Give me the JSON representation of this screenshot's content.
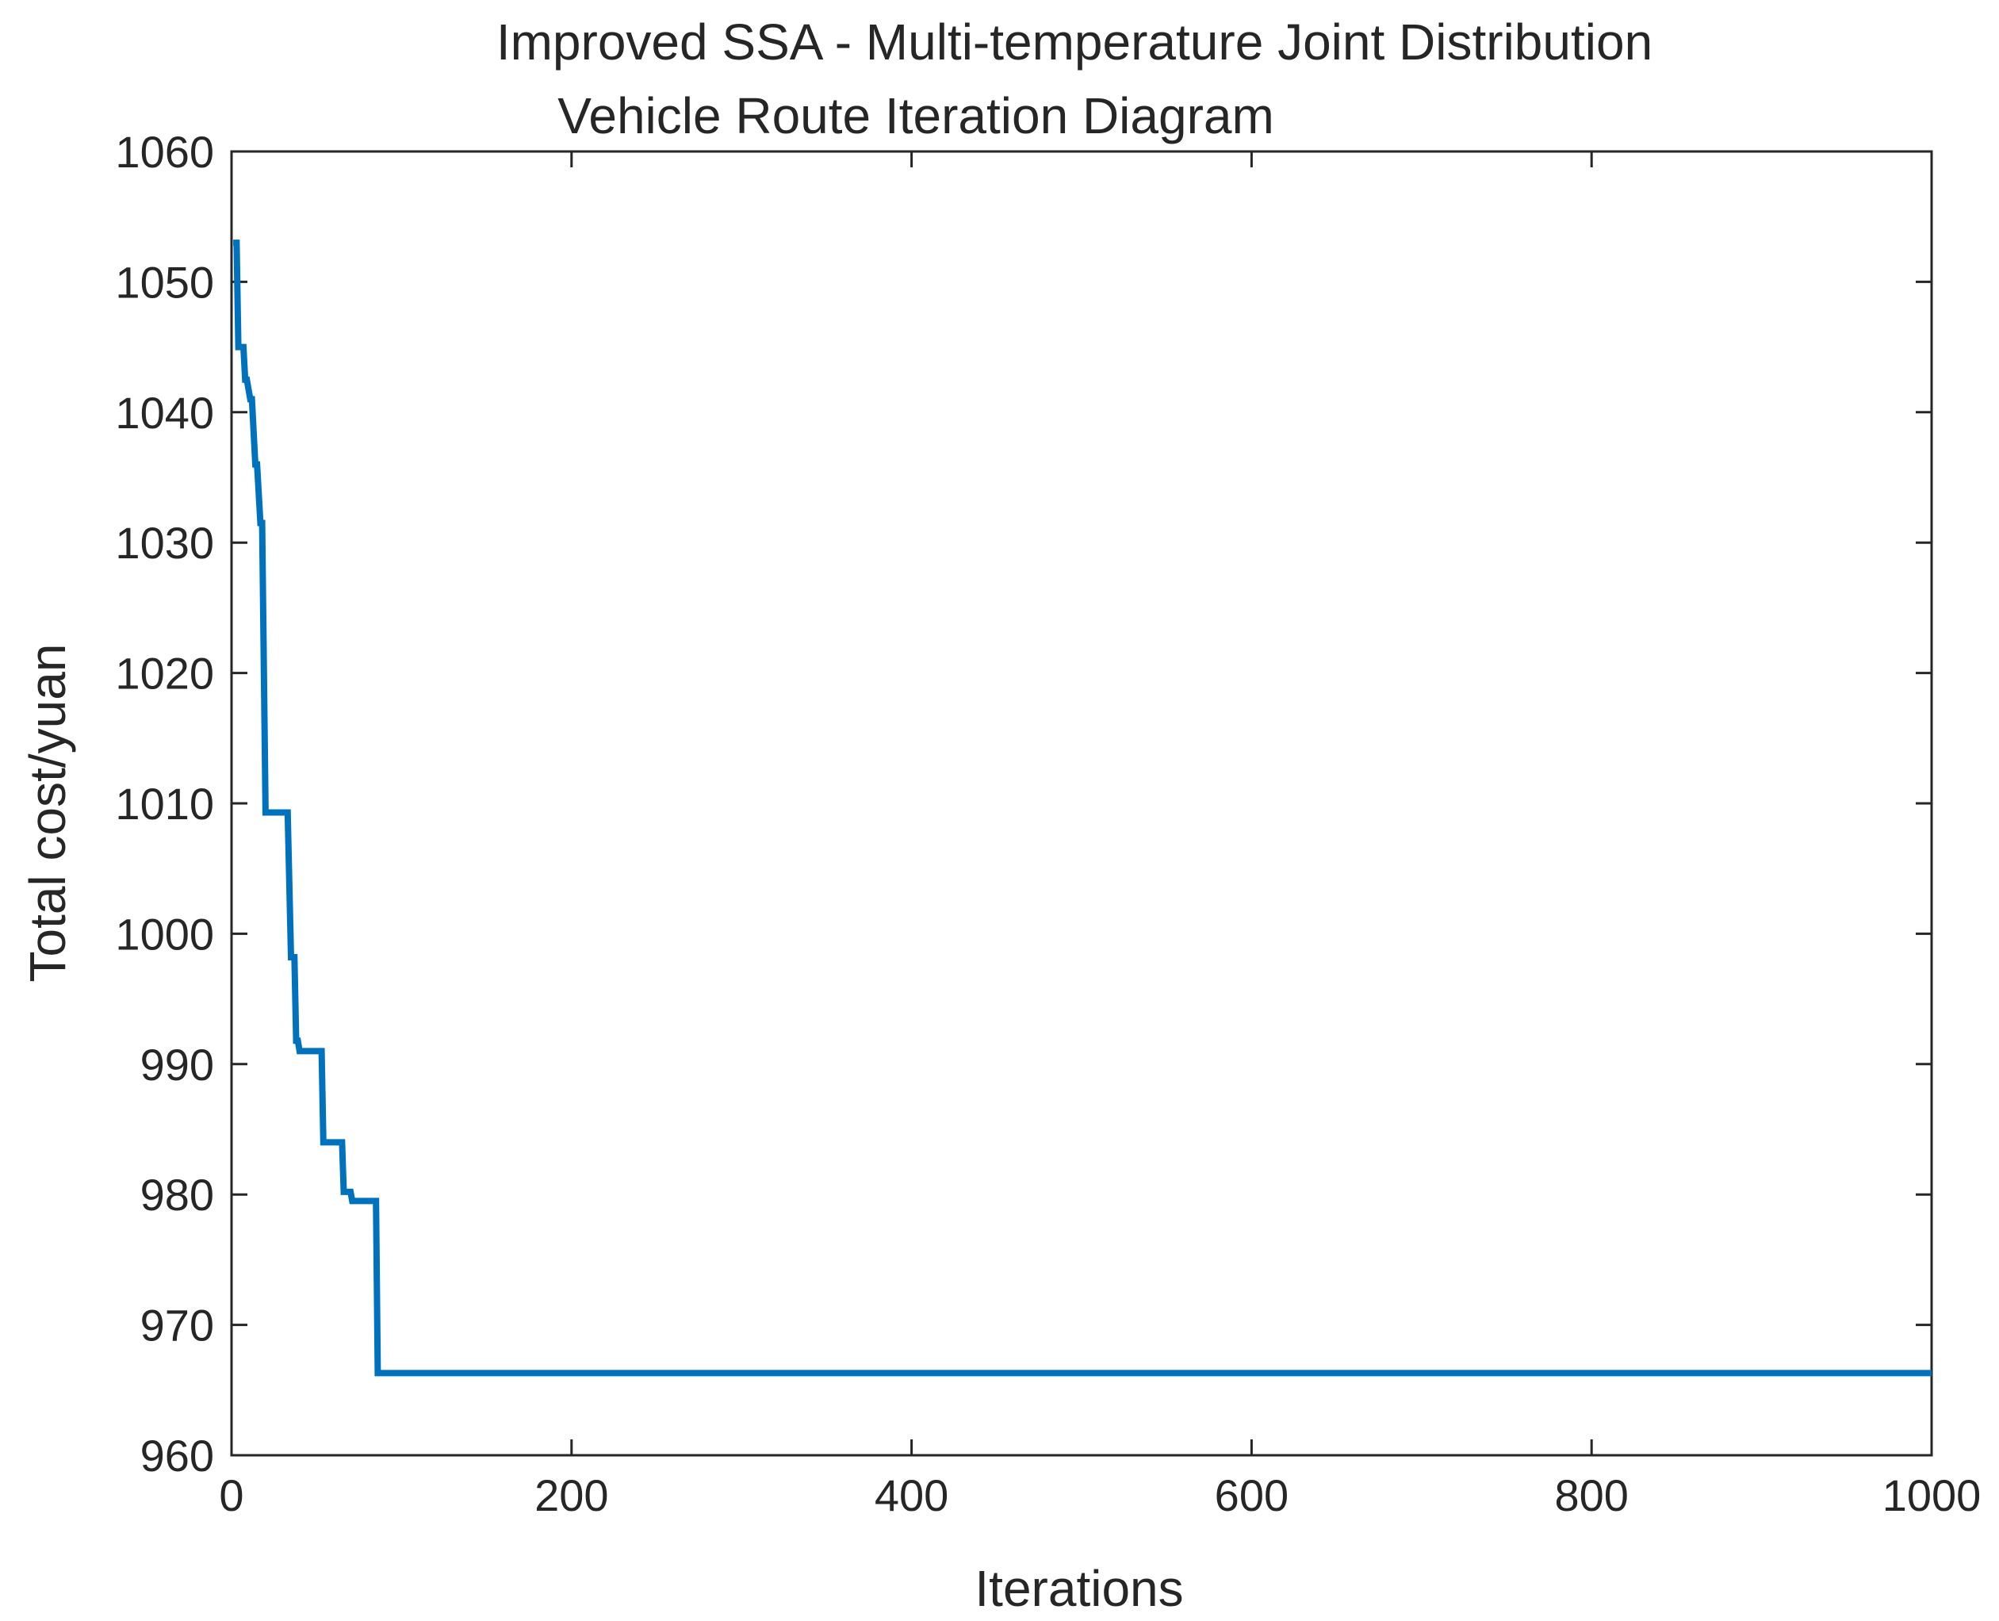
{
  "chart_data": {
    "type": "line",
    "title": [
      "Improved SSA - Multi-temperature Joint Distribution",
      "Vehicle Route Iteration Diagram"
    ],
    "xlabel": "Iterations",
    "ylabel": "Total cost/yuan",
    "xlim": [
      0,
      1000
    ],
    "ylim": [
      960,
      1060
    ],
    "xticks": [
      0,
      200,
      400,
      600,
      800,
      1000
    ],
    "yticks": [
      960,
      970,
      980,
      990,
      1000,
      1010,
      1020,
      1030,
      1040,
      1050,
      1060
    ],
    "grid": false,
    "legend": null,
    "series": [
      {
        "color": "#0072BD",
        "x": [
          1,
          3,
          4,
          7,
          8,
          9,
          11,
          12,
          14,
          15,
          17,
          18,
          20,
          33,
          35,
          37,
          38,
          39,
          40,
          42,
          53,
          54,
          55,
          56,
          65,
          66,
          67,
          70,
          71,
          85,
          86,
          87,
          1000
        ],
        "y": [
          1053,
          1053,
          1045,
          1045,
          1042.5,
          1042.5,
          1041,
          1041,
          1036,
          1036,
          1031.5,
          1031.5,
          1009.3,
          1009.3,
          998.2,
          998.2,
          991.8,
          991.8,
          991,
          991,
          991,
          984,
          984,
          984,
          984,
          980.2,
          980.2,
          980.2,
          979.5,
          979.5,
          966.3,
          966.3,
          966.3
        ]
      }
    ]
  },
  "colors": {
    "axes": "#262626",
    "line": "#0072BD",
    "background": "#ffffff"
  }
}
